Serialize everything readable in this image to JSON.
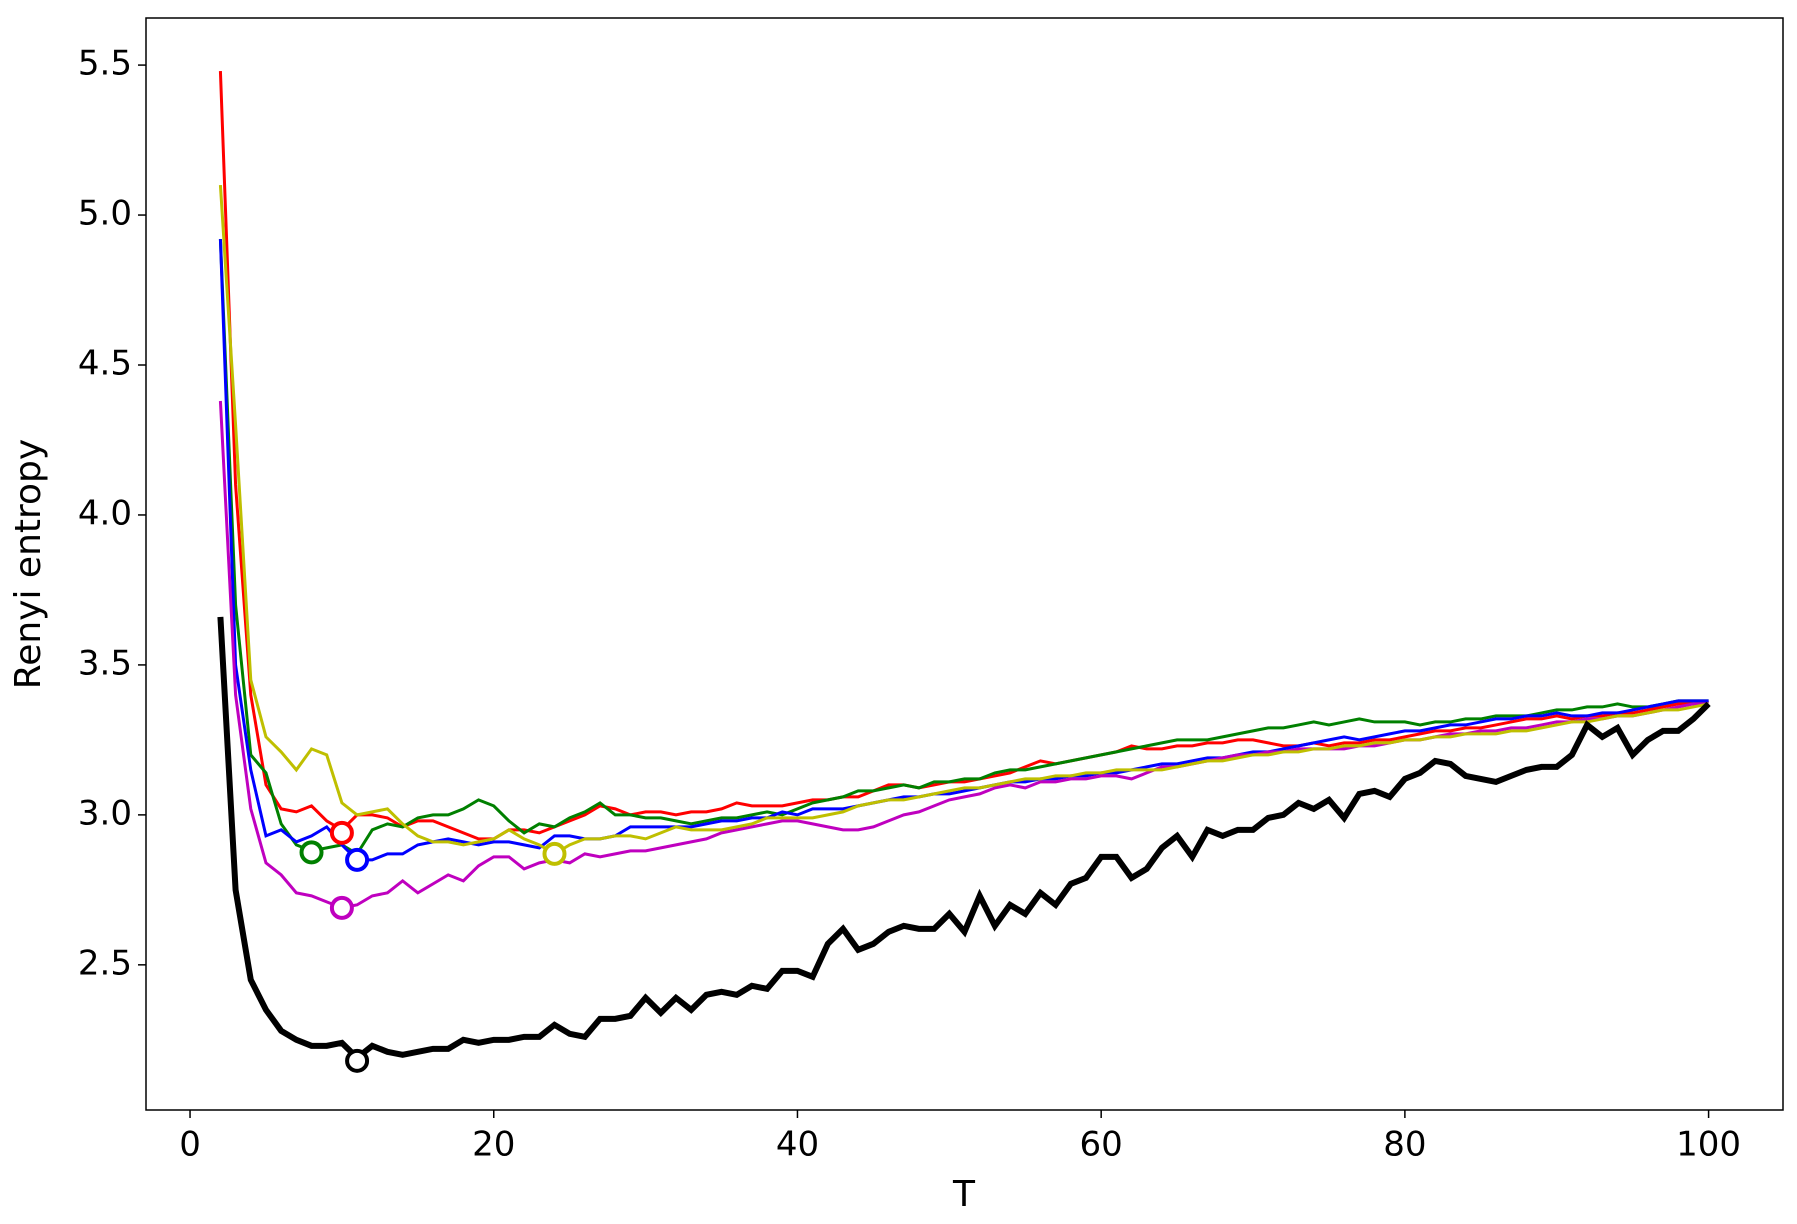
{
  "chart_data": {
    "type": "line",
    "xlabel": "T",
    "ylabel": "Renyi entropy",
    "xlim": [
      -2.9,
      104.9
    ],
    "ylim": [
      2.016,
      5.657
    ],
    "xticks": [
      0,
      20,
      40,
      60,
      80,
      100
    ],
    "yticks": [
      2.5,
      {
        "value": 3,
        "label": "3.0"
      },
      3.5,
      {
        "value": 4,
        "label": "4.0"
      },
      4.5,
      {
        "value": 5,
        "label": "5.0"
      },
      5.5
    ],
    "grid": false,
    "x": [
      2,
      3,
      4,
      5,
      6,
      7,
      8,
      9,
      10,
      11,
      12,
      13,
      14,
      15,
      16,
      17,
      18,
      19,
      20,
      21,
      22,
      23,
      24,
      25,
      26,
      27,
      28,
      29,
      30,
      31,
      32,
      33,
      34,
      35,
      36,
      37,
      38,
      39,
      40,
      41,
      42,
      43,
      44,
      45,
      46,
      47,
      48,
      49,
      50,
      51,
      52,
      53,
      54,
      55,
      56,
      57,
      58,
      59,
      60,
      61,
      62,
      63,
      64,
      65,
      66,
      67,
      68,
      69,
      70,
      71,
      72,
      73,
      74,
      75,
      76,
      77,
      78,
      79,
      80,
      81,
      82,
      83,
      84,
      85,
      86,
      87,
      88,
      89,
      90,
      91,
      92,
      93,
      94,
      95,
      96,
      97,
      98,
      99,
      100
    ],
    "series": [
      {
        "color": "#ff0000",
        "linewidth": 3,
        "marker": {
          "x": 10,
          "y": 2.94
        },
        "values": [
          5.48,
          4.1,
          3.4,
          3.1,
          3.02,
          3.01,
          3.03,
          2.98,
          2.95,
          3.0,
          3.0,
          2.99,
          2.96,
          2.98,
          2.98,
          2.96,
          2.94,
          2.92,
          2.92,
          2.95,
          2.95,
          2.94,
          2.96,
          2.98,
          3.0,
          3.03,
          3.02,
          3.0,
          3.01,
          3.01,
          3.0,
          3.01,
          3.01,
          3.02,
          3.04,
          3.03,
          3.03,
          3.03,
          3.04,
          3.05,
          3.05,
          3.06,
          3.06,
          3.08,
          3.1,
          3.1,
          3.09,
          3.1,
          3.11,
          3.11,
          3.12,
          3.13,
          3.14,
          3.16,
          3.18,
          3.17,
          3.18,
          3.19,
          3.2,
          3.21,
          3.23,
          3.22,
          3.22,
          3.23,
          3.23,
          3.24,
          3.24,
          3.25,
          3.25,
          3.24,
          3.23,
          3.23,
          3.24,
          3.23,
          3.24,
          3.24,
          3.25,
          3.25,
          3.26,
          3.27,
          3.28,
          3.28,
          3.29,
          3.29,
          3.3,
          3.31,
          3.32,
          3.32,
          3.33,
          3.32,
          3.33,
          3.33,
          3.34,
          3.34,
          3.35,
          3.36,
          3.37,
          3.37,
          3.38
        ]
      },
      {
        "color": "#008000",
        "linewidth": 3,
        "marker": {
          "x": 8,
          "y": 2.875
        },
        "values": [
          4.92,
          3.7,
          3.2,
          3.14,
          2.97,
          2.9,
          2.88,
          2.89,
          2.9,
          2.87,
          2.95,
          2.97,
          2.96,
          2.99,
          3.0,
          3.0,
          3.02,
          3.05,
          3.03,
          2.98,
          2.94,
          2.97,
          2.96,
          2.99,
          3.01,
          3.04,
          3.0,
          3.0,
          2.99,
          2.99,
          2.98,
          2.97,
          2.98,
          2.99,
          2.99,
          3.0,
          3.01,
          3.0,
          3.02,
          3.04,
          3.05,
          3.06,
          3.08,
          3.08,
          3.09,
          3.1,
          3.09,
          3.11,
          3.11,
          3.12,
          3.12,
          3.14,
          3.15,
          3.15,
          3.16,
          3.17,
          3.18,
          3.19,
          3.2,
          3.21,
          3.22,
          3.23,
          3.24,
          3.25,
          3.25,
          3.25,
          3.26,
          3.27,
          3.28,
          3.29,
          3.29,
          3.3,
          3.31,
          3.3,
          3.31,
          3.32,
          3.31,
          3.31,
          3.31,
          3.3,
          3.31,
          3.31,
          3.32,
          3.32,
          3.33,
          3.33,
          3.33,
          3.34,
          3.35,
          3.35,
          3.36,
          3.36,
          3.37,
          3.36,
          3.36,
          3.37,
          3.38,
          3.38,
          3.38
        ]
      },
      {
        "color": "#0000ff",
        "linewidth": 3,
        "marker": {
          "x": 11,
          "y": 2.85
        },
        "values": [
          4.92,
          3.5,
          3.15,
          2.93,
          2.95,
          2.91,
          2.93,
          2.96,
          2.9,
          2.85,
          2.85,
          2.87,
          2.87,
          2.9,
          2.91,
          2.92,
          2.91,
          2.9,
          2.91,
          2.91,
          2.9,
          2.89,
          2.93,
          2.93,
          2.92,
          2.92,
          2.93,
          2.96,
          2.96,
          2.96,
          2.96,
          2.96,
          2.97,
          2.98,
          2.98,
          2.99,
          2.99,
          3.01,
          3.0,
          3.02,
          3.02,
          3.02,
          3.03,
          3.04,
          3.05,
          3.06,
          3.06,
          3.07,
          3.07,
          3.08,
          3.09,
          3.1,
          3.11,
          3.11,
          3.12,
          3.12,
          3.13,
          3.13,
          3.14,
          3.14,
          3.15,
          3.16,
          3.17,
          3.17,
          3.18,
          3.19,
          3.19,
          3.2,
          3.21,
          3.21,
          3.22,
          3.23,
          3.24,
          3.25,
          3.26,
          3.25,
          3.26,
          3.27,
          3.28,
          3.28,
          3.29,
          3.3,
          3.3,
          3.31,
          3.32,
          3.32,
          3.33,
          3.33,
          3.34,
          3.33,
          3.33,
          3.34,
          3.34,
          3.35,
          3.36,
          3.37,
          3.38,
          3.38,
          3.38
        ]
      },
      {
        "color": "#bf00bf",
        "linewidth": 3,
        "marker": {
          "x": 10,
          "y": 2.69
        },
        "values": [
          4.38,
          3.4,
          3.02,
          2.84,
          2.8,
          2.74,
          2.73,
          2.71,
          2.69,
          2.7,
          2.73,
          2.74,
          2.78,
          2.74,
          2.77,
          2.8,
          2.78,
          2.83,
          2.86,
          2.86,
          2.82,
          2.84,
          2.85,
          2.84,
          2.87,
          2.86,
          2.87,
          2.88,
          2.88,
          2.89,
          2.9,
          2.91,
          2.92,
          2.94,
          2.95,
          2.96,
          2.97,
          2.98,
          2.98,
          2.97,
          2.96,
          2.95,
          2.95,
          2.96,
          2.98,
          3.0,
          3.01,
          3.03,
          3.05,
          3.06,
          3.07,
          3.09,
          3.1,
          3.09,
          3.11,
          3.11,
          3.12,
          3.12,
          3.13,
          3.13,
          3.12,
          3.14,
          3.16,
          3.16,
          3.17,
          3.18,
          3.19,
          3.2,
          3.2,
          3.21,
          3.21,
          3.22,
          3.22,
          3.22,
          3.22,
          3.23,
          3.23,
          3.24,
          3.25,
          3.25,
          3.26,
          3.27,
          3.27,
          3.28,
          3.28,
          3.29,
          3.29,
          3.3,
          3.31,
          3.31,
          3.32,
          3.32,
          3.33,
          3.33,
          3.34,
          3.35,
          3.36,
          3.37,
          3.37
        ]
      },
      {
        "color": "#bfbf00",
        "linewidth": 3,
        "marker": {
          "x": 24,
          "y": 2.87
        },
        "values": [
          5.1,
          4.3,
          3.45,
          3.26,
          3.21,
          3.15,
          3.22,
          3.2,
          3.04,
          3.0,
          3.01,
          3.02,
          2.97,
          2.93,
          2.91,
          2.91,
          2.9,
          2.91,
          2.92,
          2.95,
          2.92,
          2.9,
          2.87,
          2.9,
          2.92,
          2.92,
          2.93,
          2.93,
          2.92,
          2.94,
          2.96,
          2.95,
          2.95,
          2.95,
          2.96,
          2.97,
          2.99,
          2.99,
          2.99,
          2.99,
          3.0,
          3.01,
          3.03,
          3.04,
          3.05,
          3.05,
          3.06,
          3.07,
          3.08,
          3.09,
          3.09,
          3.1,
          3.11,
          3.12,
          3.12,
          3.13,
          3.13,
          3.14,
          3.14,
          3.15,
          3.15,
          3.15,
          3.15,
          3.16,
          3.17,
          3.18,
          3.18,
          3.19,
          3.2,
          3.2,
          3.21,
          3.21,
          3.22,
          3.22,
          3.23,
          3.23,
          3.24,
          3.24,
          3.25,
          3.25,
          3.26,
          3.26,
          3.27,
          3.27,
          3.27,
          3.28,
          3.28,
          3.29,
          3.3,
          3.31,
          3.31,
          3.32,
          3.33,
          3.33,
          3.34,
          3.35,
          3.35,
          3.36,
          3.37
        ]
      },
      {
        "color": "#000000",
        "linewidth": 6,
        "marker": {
          "x": 11,
          "y": 2.18
        },
        "values": [
          3.66,
          2.75,
          2.45,
          2.35,
          2.28,
          2.25,
          2.23,
          2.23,
          2.24,
          2.19,
          2.23,
          2.21,
          2.2,
          2.21,
          2.22,
          2.22,
          2.25,
          2.24,
          2.25,
          2.25,
          2.26,
          2.26,
          2.3,
          2.27,
          2.26,
          2.32,
          2.32,
          2.33,
          2.39,
          2.34,
          2.39,
          2.35,
          2.4,
          2.41,
          2.4,
          2.43,
          2.42,
          2.48,
          2.48,
          2.46,
          2.57,
          2.62,
          2.55,
          2.57,
          2.61,
          2.63,
          2.62,
          2.62,
          2.67,
          2.61,
          2.73,
          2.63,
          2.7,
          2.67,
          2.74,
          2.7,
          2.77,
          2.79,
          2.86,
          2.86,
          2.79,
          2.82,
          2.89,
          2.93,
          2.86,
          2.95,
          2.93,
          2.95,
          2.95,
          2.99,
          3.0,
          3.04,
          3.02,
          3.05,
          2.99,
          3.07,
          3.08,
          3.06,
          3.12,
          3.14,
          3.18,
          3.17,
          3.13,
          3.12,
          3.11,
          3.13,
          3.15,
          3.16,
          3.16,
          3.2,
          3.3,
          3.26,
          3.29,
          3.2,
          3.25,
          3.28,
          3.28,
          3.32,
          3.37
        ]
      }
    ]
  }
}
